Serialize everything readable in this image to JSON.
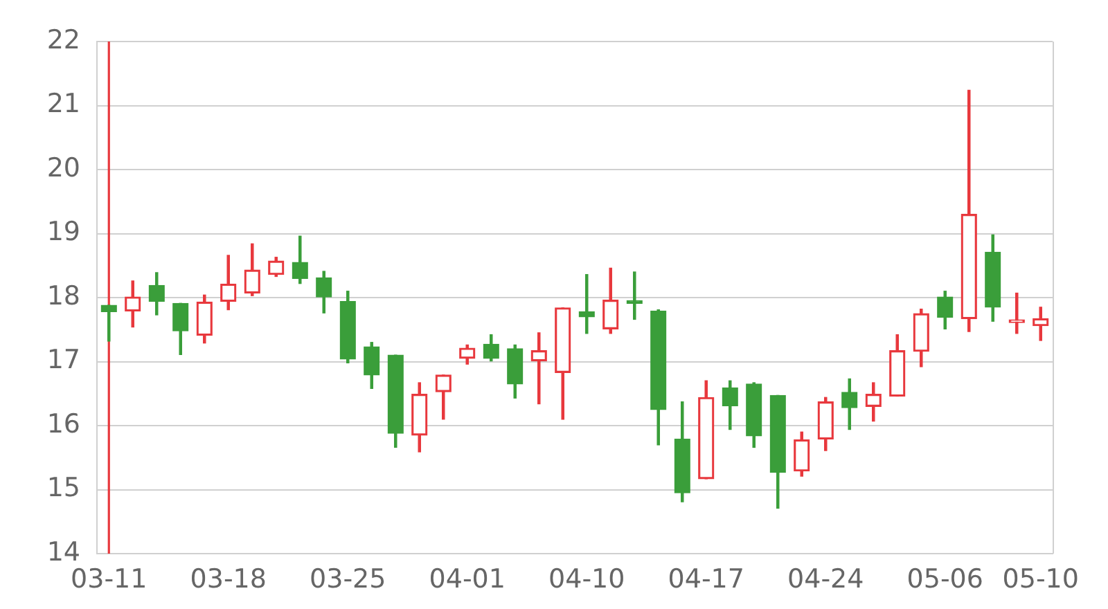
{
  "chart_data": {
    "type": "candlestick",
    "categories": [
      "03-11",
      null,
      null,
      null,
      null,
      "03-18",
      null,
      null,
      null,
      null,
      "03-25",
      null,
      null,
      null,
      null,
      "04-01",
      null,
      null,
      null,
      null,
      "04-10",
      null,
      null,
      null,
      null,
      "04-17",
      null,
      null,
      null,
      null,
      "04-24",
      null,
      null,
      null,
      null,
      "05-06",
      null,
      null,
      null,
      "05-10"
    ],
    "ohlc": [
      [
        17.88,
        17.88,
        17.32,
        17.78
      ],
      [
        17.79,
        18.26,
        17.54,
        18.01
      ],
      [
        18.19,
        18.39,
        17.73,
        17.94
      ],
      [
        17.91,
        17.91,
        17.11,
        17.48
      ],
      [
        17.41,
        18.04,
        17.29,
        17.93
      ],
      [
        17.94,
        18.66,
        17.81,
        18.21
      ],
      [
        18.07,
        18.84,
        18.03,
        18.43
      ],
      [
        18.36,
        18.63,
        18.33,
        18.57
      ],
      [
        18.55,
        18.96,
        18.22,
        18.3
      ],
      [
        18.31,
        18.41,
        17.76,
        18.01
      ],
      [
        17.94,
        18.1,
        16.98,
        17.04
      ],
      [
        17.23,
        17.3,
        16.58,
        16.79
      ],
      [
        17.1,
        17.1,
        15.66,
        15.88
      ],
      [
        15.85,
        16.67,
        15.59,
        16.49
      ],
      [
        16.53,
        16.79,
        16.1,
        16.79
      ],
      [
        17.05,
        17.26,
        16.96,
        17.21
      ],
      [
        17.27,
        17.42,
        17.01,
        17.05
      ],
      [
        17.2,
        17.26,
        16.43,
        16.65
      ],
      [
        17.01,
        17.45,
        16.34,
        17.17
      ],
      [
        16.83,
        17.84,
        16.1,
        17.84
      ],
      [
        17.78,
        18.36,
        17.44,
        17.7
      ],
      [
        17.51,
        18.46,
        17.44,
        17.96
      ],
      [
        17.94,
        18.4,
        17.66,
        17.91
      ],
      [
        17.79,
        17.81,
        15.7,
        16.25
      ],
      [
        15.79,
        16.37,
        14.81,
        14.95
      ],
      [
        15.17,
        16.7,
        15.17,
        16.44
      ],
      [
        16.59,
        16.7,
        15.94,
        16.31
      ],
      [
        16.65,
        16.67,
        15.66,
        15.84
      ],
      [
        16.47,
        16.47,
        14.71,
        15.27
      ],
      [
        15.29,
        15.9,
        15.21,
        15.78
      ],
      [
        15.79,
        16.44,
        15.61,
        16.37
      ],
      [
        16.52,
        16.73,
        15.94,
        16.28
      ],
      [
        16.3,
        16.67,
        16.07,
        16.49
      ],
      [
        16.46,
        17.42,
        16.46,
        17.17
      ],
      [
        17.16,
        17.82,
        16.92,
        17.75
      ],
      [
        18.01,
        18.1,
        17.51,
        17.69
      ],
      [
        17.67,
        21.24,
        17.47,
        19.3
      ],
      [
        18.71,
        18.98,
        17.63,
        17.85
      ],
      [
        17.61,
        18.07,
        17.44,
        17.63
      ],
      [
        17.56,
        17.85,
        17.33,
        17.67
      ]
    ],
    "colors": [
      "#3a9e3a",
      "#e8383d",
      "#3a9e3a",
      "#3a9e3a",
      "#e8383d",
      "#e8383d",
      "#e8383d",
      "#e8383d",
      "#3a9e3a",
      "#3a9e3a",
      "#3a9e3a",
      "#3a9e3a",
      "#3a9e3a",
      "#e8383d",
      "#e8383d",
      "#e8383d",
      "#3a9e3a",
      "#3a9e3a",
      "#e8383d",
      "#e8383d",
      "#3a9e3a",
      "#e8383d",
      "#3a9e3a",
      "#3a9e3a",
      "#3a9e3a",
      "#e8383d",
      "#3a9e3a",
      "#3a9e3a",
      "#3a9e3a",
      "#e8383d",
      "#e8383d",
      "#3a9e3a",
      "#e8383d",
      "#e8383d",
      "#e8383d",
      "#3a9e3a",
      "#e8383d",
      "#3a9e3a",
      "#e8383d",
      "#e8383d"
    ],
    "ylim": [
      14,
      22
    ],
    "yticks": [
      14,
      15,
      16,
      17,
      18,
      19,
      20,
      21,
      22
    ],
    "grid": "y",
    "ref_lines": [
      {
        "axis": "x",
        "value": "03-11",
        "color": "#e8383d"
      }
    ]
  }
}
